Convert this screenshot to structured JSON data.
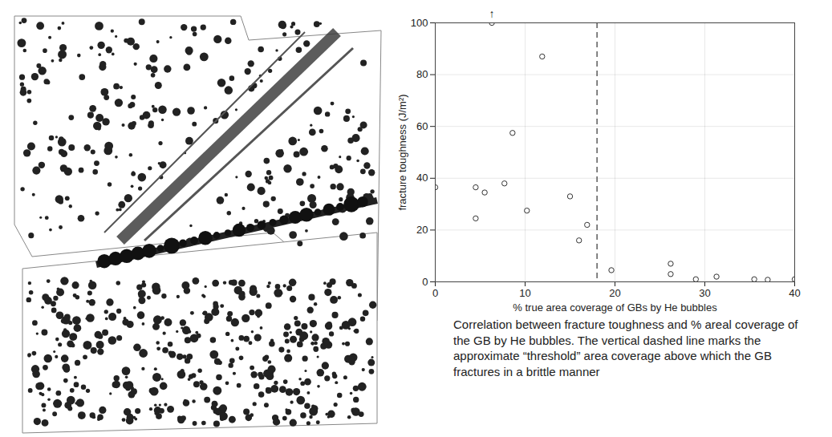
{
  "chart_data": {
    "type": "scatter",
    "x_label": "% true area coverage of GBs by He bubbles",
    "y_label": "fracture toughness (J/m²)",
    "caption": "Correlation between fracture toughness and % areal coverage of the GB by He bubbles. The vertical dashed line marks the approximate “threshold” area coverage above which the GB fractures in a brittle manner",
    "x": [
      0,
      4.5,
      4.5,
      5.5,
      6.3,
      7.7,
      8.6,
      10.2,
      11.9,
      15,
      16,
      16.9,
      19.6,
      26.2,
      26.2,
      29,
      31.3,
      35.5,
      37,
      40
    ],
    "values": [
      36.5,
      36.5,
      24.5,
      34.5,
      100,
      38,
      57.5,
      27.5,
      87,
      33,
      16,
      22,
      4.5,
      7,
      3,
      1,
      2,
      1,
      0.8,
      1
    ],
    "color": "#333333",
    "marker": "circle_open",
    "xlim": [
      0,
      40
    ],
    "xticks": [
      0,
      10,
      20,
      30,
      40
    ],
    "ylim": [
      0,
      100
    ],
    "yticks": [
      0,
      20,
      40,
      60,
      80,
      100
    ],
    "grid": true,
    "reference_lines": [
      {
        "x": 18,
        "line_style": "dashed"
      }
    ],
    "annotations": [
      {
        "text": "↑",
        "x": 6.3,
        "y": 100
      }
    ]
  }
}
